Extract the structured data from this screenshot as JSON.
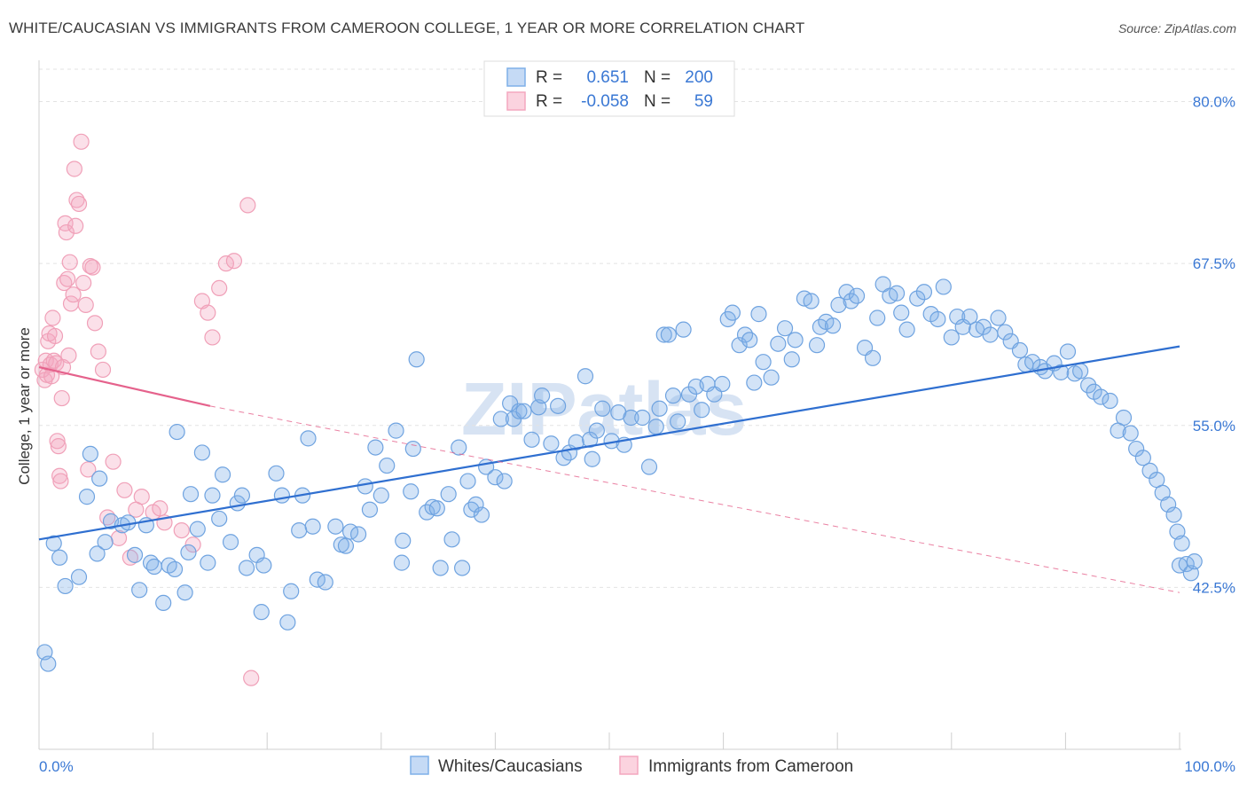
{
  "title": "WHITE/CAUCASIAN VS IMMIGRANTS FROM CAMEROON COLLEGE, 1 YEAR OR MORE CORRELATION CHART",
  "source": "Source: ZipAtlas.com",
  "watermark": "ZIPatlas",
  "colors": {
    "blue": "#7fb0e8",
    "blue_line": "#2f6fd0",
    "pink": "#f4a7bf",
    "pink_line": "#e5628c",
    "tick_text": "#3a78d4"
  },
  "legend": {
    "rows": [
      {
        "r_label": "R =",
        "r_value": "0.651",
        "n_label": "N =",
        "n_value": "200"
      },
      {
        "r_label": "R =",
        "r_value": "-0.058",
        "n_label": "N =",
        "n_value": "59"
      }
    ]
  },
  "bottom_legend": {
    "series1": "Whites/Caucasians",
    "series2": "Immigrants from Cameroon"
  },
  "chart_data": {
    "type": "scatter",
    "ylabel": "College, 1 year or more",
    "xlabel": "",
    "xlim": [
      0,
      100
    ],
    "ylim": [
      30,
      82.5
    ],
    "y_ticks": [
      42.5,
      55.0,
      67.5,
      80.0
    ],
    "y_tick_labels": [
      "42.5%",
      "55.0%",
      "67.5%",
      "80.0%"
    ],
    "x_tick_labels": [
      "0.0%",
      "100.0%"
    ],
    "grid": true,
    "legend_position": "top-center",
    "series": [
      {
        "name": "Whites/Caucasians",
        "color": "#7fb0e8",
        "trend": {
          "x": [
            0,
            100
          ],
          "y": [
            46.2,
            61.1
          ]
        },
        "points": [
          [
            0.5,
            37.5
          ],
          [
            0.8,
            36.6
          ],
          [
            1.3,
            45.9
          ],
          [
            1.8,
            44.8
          ],
          [
            2.3,
            42.6
          ],
          [
            3.5,
            43.3
          ],
          [
            4.2,
            49.5
          ],
          [
            4.5,
            52.8
          ],
          [
            5.1,
            45.1
          ],
          [
            5.3,
            50.9
          ],
          [
            5.8,
            46.0
          ],
          [
            6.3,
            47.6
          ],
          [
            7.3,
            47.3
          ],
          [
            7.8,
            47.5
          ],
          [
            8.4,
            45.0
          ],
          [
            8.8,
            42.3
          ],
          [
            9.4,
            47.3
          ],
          [
            9.8,
            44.4
          ],
          [
            10.1,
            44.1
          ],
          [
            10.9,
            41.3
          ],
          [
            11.4,
            44.2
          ],
          [
            11.9,
            43.9
          ],
          [
            12.1,
            54.5
          ],
          [
            12.8,
            42.1
          ],
          [
            13.1,
            45.2
          ],
          [
            13.3,
            49.7
          ],
          [
            13.9,
            47.0
          ],
          [
            14.3,
            52.9
          ],
          [
            14.8,
            44.4
          ],
          [
            15.2,
            49.6
          ],
          [
            15.8,
            47.8
          ],
          [
            16.1,
            51.2
          ],
          [
            16.8,
            46.0
          ],
          [
            17.4,
            49.0
          ],
          [
            17.8,
            49.6
          ],
          [
            18.2,
            44.0
          ],
          [
            19.1,
            45.0
          ],
          [
            19.7,
            44.2
          ],
          [
            19.5,
            40.6
          ],
          [
            20.8,
            51.3
          ],
          [
            21.3,
            49.6
          ],
          [
            21.8,
            39.8
          ],
          [
            22.1,
            42.2
          ],
          [
            22.8,
            46.9
          ],
          [
            23.1,
            49.6
          ],
          [
            23.6,
            54.0
          ],
          [
            24.0,
            47.2
          ],
          [
            24.4,
            43.1
          ],
          [
            25.1,
            42.9
          ],
          [
            26.0,
            47.2
          ],
          [
            26.5,
            45.8
          ],
          [
            26.9,
            45.7
          ],
          [
            27.3,
            46.8
          ],
          [
            28.0,
            46.6
          ],
          [
            28.6,
            50.3
          ],
          [
            29.0,
            48.5
          ],
          [
            29.5,
            53.3
          ],
          [
            30.0,
            49.6
          ],
          [
            30.5,
            51.9
          ],
          [
            31.3,
            54.6
          ],
          [
            31.9,
            46.1
          ],
          [
            31.8,
            44.4
          ],
          [
            32.6,
            49.9
          ],
          [
            33.1,
            60.1
          ],
          [
            32.8,
            53.2
          ],
          [
            34.0,
            48.3
          ],
          [
            34.5,
            48.7
          ],
          [
            34.9,
            48.6
          ],
          [
            35.2,
            44.0
          ],
          [
            35.9,
            49.7
          ],
          [
            36.2,
            46.2
          ],
          [
            37.1,
            44.0
          ],
          [
            36.8,
            53.3
          ],
          [
            37.6,
            50.7
          ],
          [
            37.9,
            48.5
          ],
          [
            38.3,
            48.9
          ],
          [
            38.8,
            48.1
          ],
          [
            39.2,
            51.8
          ],
          [
            40.0,
            51.0
          ],
          [
            40.5,
            55.5
          ],
          [
            40.8,
            50.7
          ],
          [
            41.3,
            56.7
          ],
          [
            41.6,
            55.5
          ],
          [
            42.1,
            56.1
          ],
          [
            42.5,
            56.1
          ],
          [
            43.2,
            53.9
          ],
          [
            43.8,
            56.4
          ],
          [
            44.1,
            57.3
          ],
          [
            44.9,
            53.6
          ],
          [
            45.5,
            56.5
          ],
          [
            46.0,
            52.5
          ],
          [
            46.5,
            52.9
          ],
          [
            47.1,
            53.7
          ],
          [
            47.9,
            58.8
          ],
          [
            48.3,
            53.9
          ],
          [
            48.5,
            52.4
          ],
          [
            48.9,
            54.6
          ],
          [
            49.4,
            56.3
          ],
          [
            50.2,
            53.8
          ],
          [
            50.8,
            56.0
          ],
          [
            51.3,
            53.5
          ],
          [
            51.9,
            55.6
          ],
          [
            52.9,
            55.6
          ],
          [
            53.5,
            51.8
          ],
          [
            54.1,
            54.9
          ],
          [
            54.4,
            56.3
          ],
          [
            54.8,
            62.0
          ],
          [
            55.2,
            62.0
          ],
          [
            55.6,
            57.3
          ],
          [
            56.0,
            55.3
          ],
          [
            56.5,
            62.4
          ],
          [
            57.0,
            57.4
          ],
          [
            57.6,
            58.0
          ],
          [
            58.1,
            56.2
          ],
          [
            58.6,
            58.2
          ],
          [
            59.2,
            57.4
          ],
          [
            59.9,
            58.2
          ],
          [
            60.4,
            63.2
          ],
          [
            60.8,
            63.7
          ],
          [
            61.4,
            61.2
          ],
          [
            61.9,
            62.0
          ],
          [
            62.3,
            61.6
          ],
          [
            62.7,
            58.3
          ],
          [
            63.1,
            63.6
          ],
          [
            63.5,
            59.9
          ],
          [
            64.2,
            58.7
          ],
          [
            64.8,
            61.3
          ],
          [
            65.4,
            62.5
          ],
          [
            66.0,
            60.1
          ],
          [
            66.3,
            61.6
          ],
          [
            67.1,
            64.8
          ],
          [
            67.7,
            64.6
          ],
          [
            68.2,
            61.2
          ],
          [
            68.5,
            62.6
          ],
          [
            69.0,
            63.0
          ],
          [
            69.6,
            62.7
          ],
          [
            70.1,
            64.3
          ],
          [
            70.8,
            65.3
          ],
          [
            71.2,
            64.6
          ],
          [
            71.7,
            65.0
          ],
          [
            72.4,
            61.0
          ],
          [
            73.1,
            60.2
          ],
          [
            73.5,
            63.3
          ],
          [
            74.0,
            65.9
          ],
          [
            74.6,
            65.0
          ],
          [
            75.2,
            65.2
          ],
          [
            75.6,
            63.7
          ],
          [
            76.1,
            62.4
          ],
          [
            77.0,
            64.8
          ],
          [
            77.6,
            65.3
          ],
          [
            78.2,
            63.6
          ],
          [
            78.8,
            63.2
          ],
          [
            79.3,
            65.7
          ],
          [
            80.0,
            61.8
          ],
          [
            80.5,
            63.4
          ],
          [
            81.0,
            62.6
          ],
          [
            81.6,
            63.4
          ],
          [
            82.2,
            62.4
          ],
          [
            82.8,
            62.6
          ],
          [
            83.4,
            62.0
          ],
          [
            84.1,
            63.3
          ],
          [
            84.7,
            62.2
          ],
          [
            85.2,
            61.5
          ],
          [
            86.0,
            60.8
          ],
          [
            86.5,
            59.7
          ],
          [
            87.1,
            59.9
          ],
          [
            87.8,
            59.5
          ],
          [
            88.2,
            59.2
          ],
          [
            89.0,
            59.8
          ],
          [
            89.6,
            59.1
          ],
          [
            90.2,
            60.7
          ],
          [
            90.8,
            59.0
          ],
          [
            91.3,
            59.2
          ],
          [
            92.0,
            58.1
          ],
          [
            92.5,
            57.6
          ],
          [
            93.1,
            57.2
          ],
          [
            93.9,
            56.9
          ],
          [
            94.6,
            54.6
          ],
          [
            95.1,
            55.6
          ],
          [
            95.7,
            54.4
          ],
          [
            96.2,
            53.2
          ],
          [
            96.8,
            52.5
          ],
          [
            97.4,
            51.5
          ],
          [
            98.0,
            50.8
          ],
          [
            98.5,
            49.8
          ],
          [
            99.0,
            48.9
          ],
          [
            99.5,
            48.1
          ],
          [
            100.0,
            44.2
          ],
          [
            99.8,
            46.8
          ],
          [
            100.2,
            45.9
          ],
          [
            100.6,
            44.3
          ],
          [
            101.0,
            43.6
          ],
          [
            101.3,
            44.5
          ]
        ]
      },
      {
        "name": "Immigrants from Cameroon",
        "color": "#f4a7bf",
        "trend_solid": {
          "x": [
            0,
            15
          ],
          "y": [
            59.5,
            56.5
          ]
        },
        "trend_dashed": {
          "x": [
            15,
            100
          ],
          "y": [
            56.5,
            42.1
          ]
        },
        "points": [
          [
            0.3,
            59.3
          ],
          [
            0.5,
            58.5
          ],
          [
            0.6,
            60.0
          ],
          [
            0.7,
            58.9
          ],
          [
            0.8,
            61.5
          ],
          [
            0.9,
            62.1
          ],
          [
            1.0,
            59.7
          ],
          [
            1.1,
            58.8
          ],
          [
            1.2,
            63.3
          ],
          [
            1.3,
            60.0
          ],
          [
            1.4,
            61.9
          ],
          [
            1.5,
            59.8
          ],
          [
            1.6,
            53.8
          ],
          [
            1.7,
            53.4
          ],
          [
            1.8,
            51.1
          ],
          [
            1.9,
            50.7
          ],
          [
            2.0,
            57.1
          ],
          [
            2.1,
            59.5
          ],
          [
            2.2,
            66.0
          ],
          [
            2.3,
            70.6
          ],
          [
            2.4,
            69.9
          ],
          [
            2.5,
            66.3
          ],
          [
            2.6,
            60.4
          ],
          [
            2.7,
            67.6
          ],
          [
            2.8,
            64.4
          ],
          [
            3.0,
            65.1
          ],
          [
            3.1,
            74.8
          ],
          [
            3.2,
            70.4
          ],
          [
            3.3,
            72.4
          ],
          [
            3.5,
            72.1
          ],
          [
            3.7,
            76.9
          ],
          [
            3.9,
            66.0
          ],
          [
            4.1,
            64.3
          ],
          [
            4.3,
            51.6
          ],
          [
            4.5,
            67.3
          ],
          [
            4.7,
            67.2
          ],
          [
            4.9,
            62.9
          ],
          [
            5.2,
            60.7
          ],
          [
            5.6,
            59.3
          ],
          [
            6.0,
            47.9
          ],
          [
            6.5,
            52.2
          ],
          [
            7.0,
            46.3
          ],
          [
            7.5,
            50.0
          ],
          [
            8.0,
            44.8
          ],
          [
            8.5,
            48.5
          ],
          [
            9.0,
            49.5
          ],
          [
            10.0,
            48.3
          ],
          [
            11.0,
            47.5
          ],
          [
            12.5,
            46.9
          ],
          [
            13.5,
            45.8
          ],
          [
            14.3,
            64.6
          ],
          [
            14.8,
            63.7
          ],
          [
            15.2,
            61.8
          ],
          [
            15.8,
            65.6
          ],
          [
            16.4,
            67.5
          ],
          [
            17.1,
            67.7
          ],
          [
            18.3,
            72.0
          ],
          [
            18.6,
            35.5
          ],
          [
            10.6,
            48.6
          ]
        ]
      }
    ]
  }
}
